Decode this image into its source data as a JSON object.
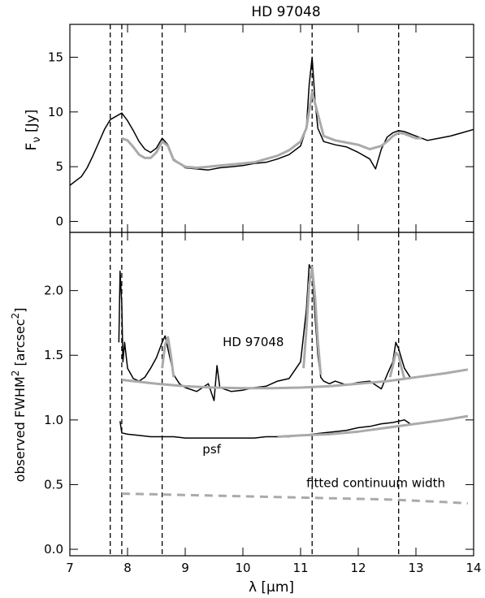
{
  "chart_data": [
    {
      "type": "line",
      "title": "HD 97048",
      "ylabel": "F",
      "ylabel_sub": "ν",
      "ylabel_unit": " [Jy]",
      "xlim": [
        7,
        14
      ],
      "ylim": [
        -1,
        18
      ],
      "yticks": [
        0,
        5,
        10,
        15
      ],
      "grid": false,
      "vlines": [
        7.7,
        7.9,
        8.6,
        11.2,
        12.7
      ],
      "series": [
        {
          "color": "#000000",
          "x": [
            7.0,
            7.1,
            7.2,
            7.3,
            7.4,
            7.5,
            7.6,
            7.7,
            7.8,
            7.9,
            8.0,
            8.1,
            8.2,
            8.3,
            8.4,
            8.5,
            8.6,
            8.7,
            8.8,
            9.0,
            9.2,
            9.4,
            9.6,
            9.8,
            10.0,
            10.2,
            10.4,
            10.6,
            10.8,
            11.0,
            11.1,
            11.15,
            11.2,
            11.25,
            11.3,
            11.4,
            11.6,
            11.8,
            12.0,
            12.2,
            12.3,
            12.4,
            12.5,
            12.6,
            12.7,
            12.8,
            13.0,
            13.2,
            13.4,
            13.6,
            13.8,
            14.0
          ],
          "y": [
            3.3,
            3.7,
            4.1,
            4.9,
            6.0,
            7.2,
            8.4,
            9.3,
            9.6,
            9.9,
            9.2,
            8.3,
            7.3,
            6.6,
            6.3,
            6.7,
            7.6,
            7.0,
            5.7,
            4.9,
            4.8,
            4.7,
            4.9,
            5.0,
            5.1,
            5.3,
            5.4,
            5.7,
            6.1,
            6.9,
            8.5,
            12.5,
            15.0,
            11.0,
            8.5,
            7.3,
            7.0,
            6.8,
            6.3,
            5.7,
            4.8,
            6.6,
            7.7,
            8.1,
            8.3,
            8.2,
            7.8,
            7.4,
            7.6,
            7.8,
            8.1,
            8.4
          ]
        },
        {
          "color": "#aaaaaa",
          "x": [
            7.9,
            8.0,
            8.1,
            8.2,
            8.3,
            8.4,
            8.5,
            8.6,
            8.7,
            8.8,
            9.0,
            9.2,
            9.4,
            9.6,
            9.8,
            10.0,
            10.2,
            10.4,
            10.6,
            10.8,
            11.0,
            11.1,
            11.2,
            11.3,
            11.4,
            11.6,
            11.8,
            12.0,
            12.2,
            12.4,
            12.5,
            12.6,
            12.7,
            12.8,
            13.0,
            13.1
          ],
          "y": [
            7.6,
            7.4,
            6.8,
            6.1,
            5.8,
            5.8,
            6.3,
            7.3,
            6.9,
            5.6,
            5.0,
            4.9,
            5.0,
            5.1,
            5.2,
            5.3,
            5.4,
            5.7,
            6.0,
            6.5,
            7.3,
            8.5,
            11.8,
            9.8,
            7.8,
            7.4,
            7.2,
            7.0,
            6.6,
            6.9,
            7.3,
            7.8,
            8.1,
            8.0,
            7.6,
            7.6
          ]
        }
      ]
    },
    {
      "type": "line",
      "xlabel": "λ [μm]",
      "ylabel": "observed FWHM",
      "ylabel_sup": "2",
      "ylabel_unit": " [arcsec",
      "ylabel_unit_sup": "2",
      "ylabel_close": "]",
      "xlim": [
        7,
        14
      ],
      "ylim": [
        -0.05,
        2.45
      ],
      "xticks": [
        7,
        8,
        9,
        10,
        11,
        12,
        13,
        14
      ],
      "yticks": [
        0.0,
        0.5,
        1.0,
        1.5,
        2.0
      ],
      "ytick_labels": [
        "0.0",
        "0.5",
        "1.0",
        "1.5",
        "2.0"
      ],
      "grid": false,
      "vlines": [
        7.7,
        7.9,
        8.6,
        11.2,
        12.7
      ],
      "annotations": [
        {
          "text": "HD 97048",
          "x": 9.65,
          "y": 1.57,
          "color": "#000000"
        },
        {
          "text": "psf",
          "x": 9.3,
          "y": 0.74,
          "color": "#000000"
        },
        {
          "text": "fitted continuum width",
          "x": 11.1,
          "y": 0.48,
          "color": "#aaaaaa"
        }
      ],
      "series": [
        {
          "color": "#000000",
          "x": [
            7.85,
            7.87,
            7.9,
            7.92,
            7.95,
            8.0,
            8.1,
            8.2,
            8.3,
            8.4,
            8.5,
            8.6,
            8.65,
            8.7,
            8.8,
            8.9,
            9.0,
            9.2,
            9.4,
            9.5,
            9.55,
            9.6,
            9.8,
            10.0,
            10.2,
            10.4,
            10.6,
            10.8,
            11.0,
            11.1,
            11.15,
            11.2,
            11.25,
            11.3,
            11.35,
            11.4,
            11.5,
            11.6,
            11.8,
            12.0,
            12.2,
            12.4,
            12.5,
            12.6,
            12.65,
            12.7,
            12.8,
            12.9
          ],
          "y": [
            1.6,
            2.15,
            1.9,
            1.45,
            1.6,
            1.4,
            1.32,
            1.3,
            1.33,
            1.4,
            1.48,
            1.6,
            1.65,
            1.55,
            1.35,
            1.28,
            1.25,
            1.22,
            1.28,
            1.15,
            1.42,
            1.25,
            1.22,
            1.23,
            1.25,
            1.26,
            1.3,
            1.32,
            1.45,
            1.85,
            2.2,
            2.15,
            1.8,
            1.5,
            1.33,
            1.3,
            1.28,
            1.3,
            1.27,
            1.29,
            1.3,
            1.24,
            1.35,
            1.45,
            1.6,
            1.55,
            1.4,
            1.33
          ]
        },
        {
          "color": "#000000",
          "x": [
            7.87,
            7.9,
            8.0,
            8.2,
            8.4,
            8.6,
            8.8,
            9.0,
            9.2,
            9.4,
            9.6,
            9.8,
            10.0,
            10.2,
            10.4,
            10.6,
            10.8,
            11.0,
            11.2,
            11.4,
            11.6,
            11.8,
            12.0,
            12.2,
            12.4,
            12.6,
            12.8,
            12.9
          ],
          "y": [
            0.99,
            0.9,
            0.89,
            0.88,
            0.87,
            0.87,
            0.87,
            0.86,
            0.86,
            0.86,
            0.86,
            0.86,
            0.86,
            0.86,
            0.87,
            0.87,
            0.87,
            0.88,
            0.89,
            0.9,
            0.91,
            0.92,
            0.94,
            0.95,
            0.97,
            0.98,
            1.0,
            0.97
          ]
        },
        {
          "color": "#aaaaaa",
          "x": [
            8.6,
            8.65,
            8.7,
            8.75,
            8.8
          ],
          "y": [
            1.4,
            1.58,
            1.64,
            1.5,
            1.33
          ]
        },
        {
          "color": "#aaaaaa",
          "x": [
            11.05,
            11.1,
            11.15,
            11.2,
            11.25,
            11.3,
            11.35
          ],
          "y": [
            1.4,
            1.7,
            2.05,
            2.18,
            1.95,
            1.6,
            1.35
          ]
        },
        {
          "color": "#aaaaaa",
          "x": [
            12.55,
            12.6,
            12.65,
            12.7,
            12.75,
            12.8
          ],
          "y": [
            1.33,
            1.42,
            1.52,
            1.5,
            1.4,
            1.32
          ]
        },
        {
          "color": "#aaaaaa",
          "x": [
            7.9,
            8.5,
            9.0,
            9.5,
            10.0,
            10.5,
            11.0,
            11.5,
            12.0,
            12.5,
            13.0,
            13.5,
            13.9
          ],
          "y": [
            1.31,
            1.28,
            1.26,
            1.25,
            1.245,
            1.245,
            1.25,
            1.26,
            1.28,
            1.3,
            1.33,
            1.36,
            1.39
          ]
        },
        {
          "color": "#aaaaaa",
          "x": [
            10.6,
            11.0,
            11.5,
            12.0,
            12.5,
            13.0,
            13.5,
            13.9
          ],
          "y": [
            0.87,
            0.88,
            0.89,
            0.91,
            0.94,
            0.97,
            1.0,
            1.03
          ]
        },
        {
          "color": "#aaaaaa",
          "dashed": true,
          "x": [
            7.9,
            8.5,
            9.0,
            9.5,
            10.0,
            10.5,
            11.0,
            11.5,
            12.0,
            12.5,
            13.0,
            13.5,
            13.9
          ],
          "y": [
            0.43,
            0.425,
            0.42,
            0.415,
            0.41,
            0.405,
            0.4,
            0.395,
            0.39,
            0.385,
            0.375,
            0.365,
            0.355
          ]
        }
      ]
    }
  ]
}
